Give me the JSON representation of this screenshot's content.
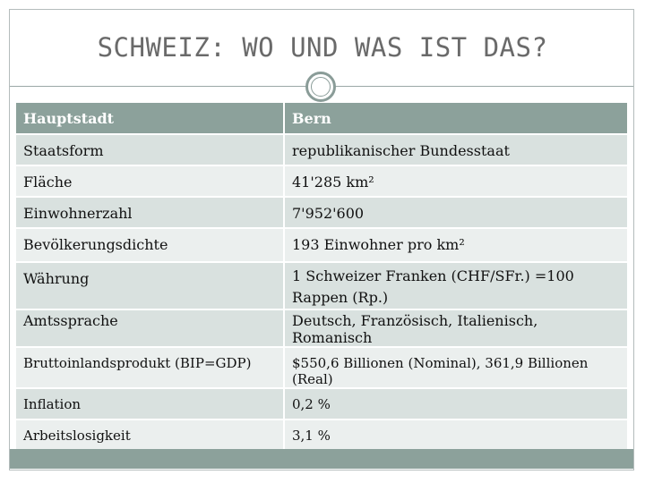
{
  "title": "SCHWEIZ: WO UND WAS IST DAS?",
  "table": {
    "header": {
      "label": "Hauptstadt",
      "value": "Bern"
    },
    "rows": [
      {
        "label": "Staatsform",
        "value": "republikanischer Bundesstaat"
      },
      {
        "label": "Fläche",
        "value": "41'285 km²"
      },
      {
        "label": "Einwohnerzahl",
        "value": "7'952'600"
      },
      {
        "label": "Bevölkerungsdichte",
        "value": "193 Einwohner pro km²"
      },
      {
        "label": "Währung",
        "value": "1 Schweizer Franken (CHF/SFr.) =100 Rappen (Rp.)"
      },
      {
        "label": "Amtssprache",
        "value": "Deutsch, Französisch, Italienisch, Romanisch"
      },
      {
        "label": "Bruttoinlandsprodukt (BIP=GDP)",
        "value": "$550,6 Billionen (Nominal), 361,9 Billionen (Real)"
      },
      {
        "label": "Inflation",
        "value": "0,2 %"
      },
      {
        "label": "Arbeitslosigkeit",
        "value": "3,1 %"
      }
    ]
  }
}
